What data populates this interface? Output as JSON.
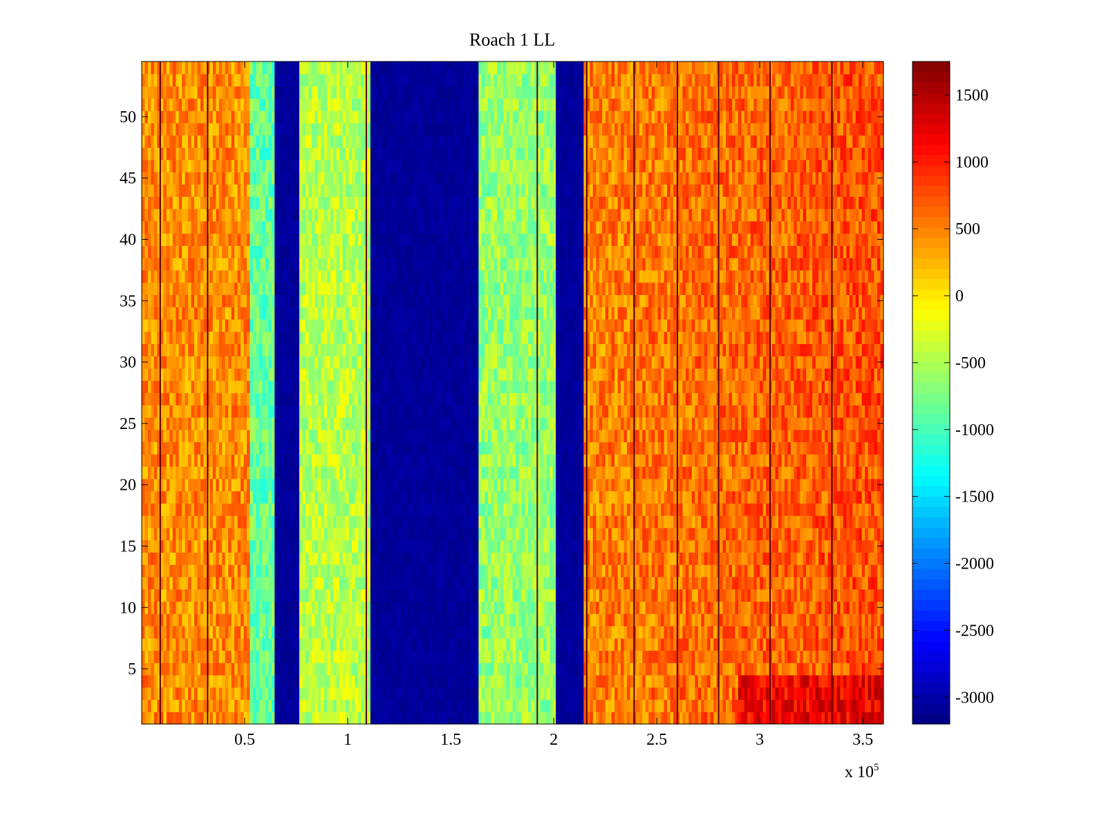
{
  "chart_data": {
    "type": "heatmap",
    "title": "Roach 1 LL",
    "xlabel": "",
    "ylabel": "",
    "x_multiplier_label": "x 10^5",
    "xlim": [
      0,
      3.6
    ],
    "ylim": [
      0.5,
      54.5
    ],
    "x_ticks": [
      0.5,
      1,
      1.5,
      2,
      2.5,
      3,
      3.5
    ],
    "x_tick_labels": [
      "0.5",
      "1",
      "1.5",
      "2",
      "2.5",
      "3",
      "3.5"
    ],
    "y_ticks": [
      5,
      10,
      15,
      20,
      25,
      30,
      35,
      40,
      45,
      50
    ],
    "y_tick_labels": [
      "5",
      "10",
      "15",
      "20",
      "25",
      "30",
      "35",
      "40",
      "45",
      "50"
    ],
    "rows": 54,
    "colorbar": {
      "colormap": "jet",
      "clim": [
        -3200,
        1750
      ],
      "ticks": [
        1500,
        1000,
        500,
        0,
        -500,
        -1000,
        -1500,
        -2000,
        -2500,
        -3000
      ],
      "tick_labels": [
        "1500",
        "1000",
        "500",
        "0",
        "-500",
        "-1000",
        "-1500",
        "-2000",
        "-2500",
        "-3000"
      ]
    },
    "column_bands": [
      {
        "x_start": 0.0,
        "x_end": 0.53,
        "value": 450
      },
      {
        "x_start": 0.53,
        "x_end": 0.65,
        "value": -850
      },
      {
        "x_start": 0.65,
        "x_end": 0.77,
        "value": -3150
      },
      {
        "x_start": 0.77,
        "x_end": 1.11,
        "value": -450
      },
      {
        "x_start": 1.11,
        "x_end": 1.64,
        "value": -3150
      },
      {
        "x_start": 1.64,
        "x_end": 2.01,
        "value": -600
      },
      {
        "x_start": 2.01,
        "x_end": 2.14,
        "value": -3150
      },
      {
        "x_start": 2.14,
        "x_end": 3.6,
        "value": 500
      }
    ],
    "dark_lines_x": [
      0.09,
      0.32,
      1.09,
      1.92,
      2.16,
      2.39,
      2.6,
      2.8,
      3.05,
      3.35
    ],
    "grid": false,
    "legend": "none"
  }
}
